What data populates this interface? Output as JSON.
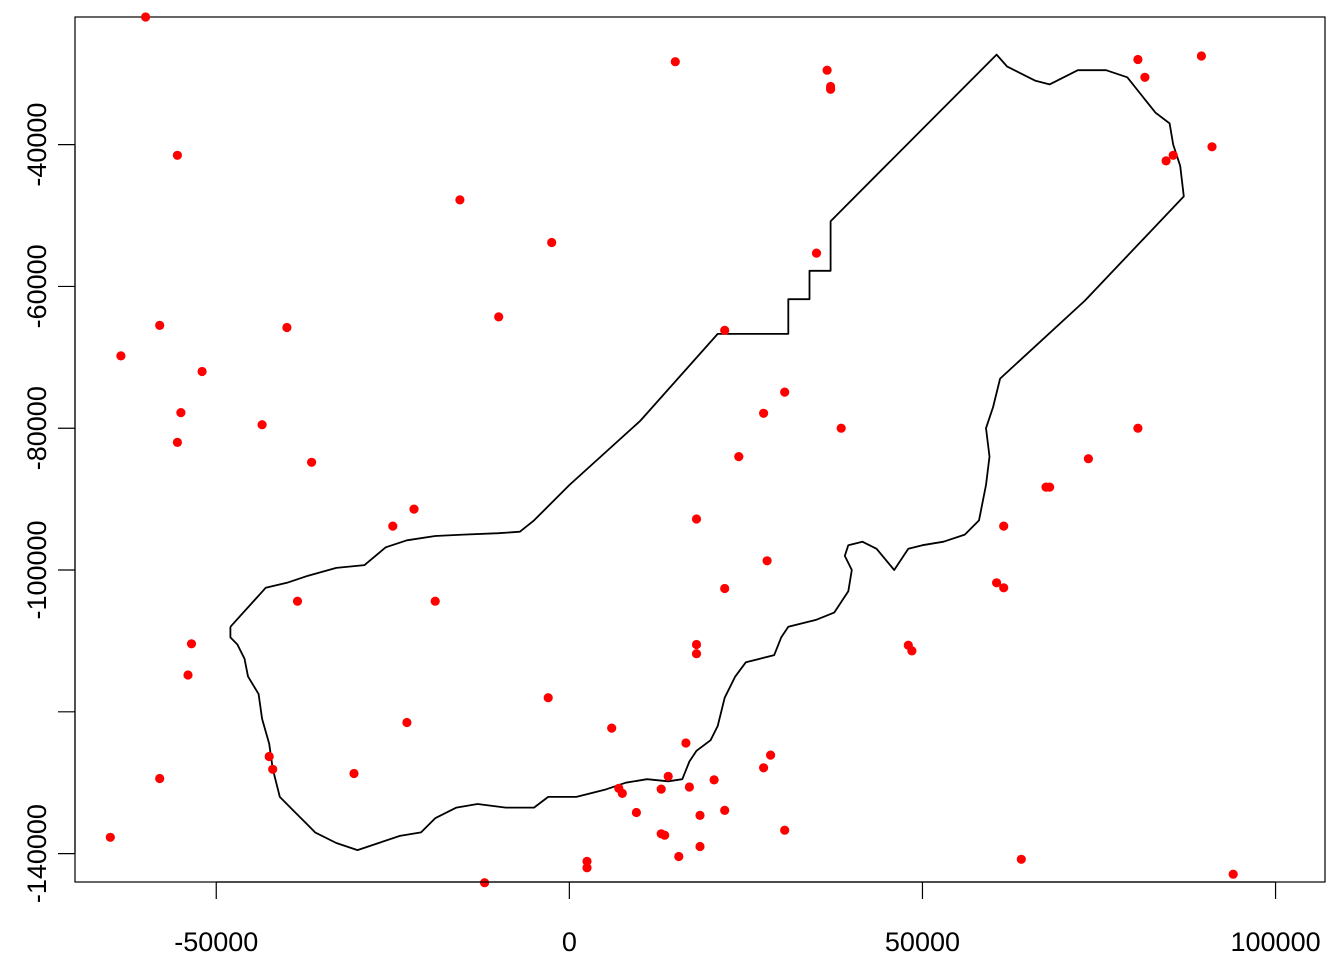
{
  "chart_data": {
    "type": "scatter",
    "title": "",
    "xlabel": "",
    "ylabel": "",
    "xlim": [
      -70000,
      107000
    ],
    "ylim": [
      -144000,
      -22000
    ],
    "x_ticks": [
      -50000,
      0,
      50000,
      100000
    ],
    "x_tick_labels": [
      "-50000",
      "0",
      "50000",
      "100000"
    ],
    "y_ticks": [
      -40000,
      -60000,
      -80000,
      -100000,
      -140000
    ],
    "y_tick_labels": [
      "-40000",
      "-60000",
      "-80000",
      "-100000",
      "-140000"
    ],
    "y_minor_ticks": [
      -120000
    ],
    "grid": false,
    "legend": "none",
    "point_color": "#ff0000",
    "boundary_color": "#000000",
    "boundary": [
      [
        -48000,
        -108000
      ],
      [
        -43000,
        -102500
      ],
      [
        -40000,
        -101800
      ],
      [
        -37000,
        -100800
      ],
      [
        -33000,
        -99700
      ],
      [
        -29000,
        -99300
      ],
      [
        -26000,
        -96800
      ],
      [
        -23000,
        -95800
      ],
      [
        -19000,
        -95200
      ],
      [
        -15000,
        -95000
      ],
      [
        -10000,
        -94800
      ],
      [
        -7000,
        -94600
      ],
      [
        -5000,
        -93000
      ],
      [
        0,
        -88000
      ],
      [
        10000,
        -79000
      ],
      [
        21000,
        -66700
      ],
      [
        31000,
        -66700
      ],
      [
        31000,
        -61800
      ],
      [
        34000,
        -61800
      ],
      [
        34000,
        -57800
      ],
      [
        37000,
        -57800
      ],
      [
        37000,
        -50800
      ],
      [
        60500,
        -27300
      ],
      [
        62000,
        -29000
      ],
      [
        64000,
        -30000
      ],
      [
        66000,
        -31000
      ],
      [
        68000,
        -31500
      ],
      [
        70000,
        -30500
      ],
      [
        72000,
        -29500
      ],
      [
        76000,
        -29500
      ],
      [
        79000,
        -30500
      ],
      [
        81000,
        -33000
      ],
      [
        83000,
        -35500
      ],
      [
        85000,
        -37000
      ],
      [
        85500,
        -40000
      ],
      [
        86500,
        -43000
      ],
      [
        87000,
        -47300
      ],
      [
        73000,
        -62000
      ],
      [
        61000,
        -73000
      ],
      [
        60000,
        -77000
      ],
      [
        59000,
        -80000
      ],
      [
        59500,
        -84000
      ],
      [
        59000,
        -88000
      ],
      [
        58000,
        -93000
      ],
      [
        56000,
        -95000
      ],
      [
        53000,
        -96000
      ],
      [
        50000,
        -96500
      ],
      [
        48000,
        -97000
      ],
      [
        46000,
        -100000
      ],
      [
        43500,
        -97000
      ],
      [
        41500,
        -96000
      ],
      [
        39500,
        -96500
      ],
      [
        39000,
        -98000
      ],
      [
        40000,
        -100000
      ],
      [
        39500,
        -103000
      ],
      [
        37500,
        -106000
      ],
      [
        35000,
        -107000
      ],
      [
        33000,
        -107500
      ],
      [
        31000,
        -108000
      ],
      [
        30000,
        -109500
      ],
      [
        29000,
        -112000
      ],
      [
        27000,
        -112500
      ],
      [
        25000,
        -113000
      ],
      [
        23500,
        -115000
      ],
      [
        22000,
        -118000
      ],
      [
        21000,
        -122000
      ],
      [
        20000,
        -124000
      ],
      [
        18000,
        -125500
      ],
      [
        17000,
        -127000
      ],
      [
        16000,
        -129500
      ],
      [
        14000,
        -129800
      ],
      [
        11000,
        -129500
      ],
      [
        8000,
        -130000
      ],
      [
        5000,
        -131000
      ],
      [
        1000,
        -132000
      ],
      [
        -3000,
        -132000
      ],
      [
        -5000,
        -133500
      ],
      [
        -9000,
        -133500
      ],
      [
        -13000,
        -133000
      ],
      [
        -16000,
        -133500
      ],
      [
        -19000,
        -135000
      ],
      [
        -21000,
        -137000
      ],
      [
        -24000,
        -137500
      ],
      [
        -27000,
        -138500
      ],
      [
        -30000,
        -139500
      ],
      [
        -33000,
        -138500
      ],
      [
        -36000,
        -137000
      ],
      [
        -37000,
        -136000
      ],
      [
        -39000,
        -134000
      ],
      [
        -41000,
        -132000
      ],
      [
        -42000,
        -128000
      ],
      [
        -42500,
        -124500
      ],
      [
        -43500,
        -121000
      ],
      [
        -44000,
        -117500
      ],
      [
        -45500,
        -115000
      ],
      [
        -46000,
        -112500
      ],
      [
        -47000,
        -110500
      ],
      [
        -48000,
        -109500
      ],
      [
        -48000,
        -108000
      ]
    ],
    "points": [
      [
        -60000,
        -22000
      ],
      [
        15000,
        -28300
      ],
      [
        36500,
        -29500
      ],
      [
        37000,
        -31800
      ],
      [
        37000,
        -32200
      ],
      [
        80500,
        -28000
      ],
      [
        81500,
        -30500
      ],
      [
        89500,
        -27500
      ],
      [
        -55500,
        -41500
      ],
      [
        -15500,
        -47800
      ],
      [
        84500,
        -42300
      ],
      [
        85500,
        -41500
      ],
      [
        91000,
        -40300
      ],
      [
        -2500,
        -53800
      ],
      [
        35000,
        -55300
      ],
      [
        -58000,
        -65500
      ],
      [
        -40000,
        -65800
      ],
      [
        -10000,
        -64300
      ],
      [
        22000,
        -66200
      ],
      [
        -63500,
        -69800
      ],
      [
        -52000,
        -72000
      ],
      [
        -55000,
        -77800
      ],
      [
        -43500,
        -79500
      ],
      [
        -55500,
        -82000
      ],
      [
        -36500,
        -84800
      ],
      [
        30500,
        -74900
      ],
      [
        27500,
        -77900
      ],
      [
        38500,
        -80000
      ],
      [
        80500,
        -80000
      ],
      [
        24000,
        -84000
      ],
      [
        73500,
        -84300
      ],
      [
        67500,
        -88300
      ],
      [
        68000,
        -88300
      ],
      [
        -22000,
        -91400
      ],
      [
        -25000,
        -93800
      ],
      [
        18000,
        -92800
      ],
      [
        61500,
        -93800
      ],
      [
        28000,
        -98700
      ],
      [
        60500,
        -101800
      ],
      [
        61500,
        -102500
      ],
      [
        22000,
        -102600
      ],
      [
        -38500,
        -104400
      ],
      [
        -19000,
        -104400
      ],
      [
        -53500,
        -110400
      ],
      [
        18000,
        -110500
      ],
      [
        18000,
        -111800
      ],
      [
        48000,
        -110600
      ],
      [
        48500,
        -111400
      ],
      [
        -54000,
        -114800
      ],
      [
        -3000,
        -118000
      ],
      [
        -23000,
        -121500
      ],
      [
        6000,
        -122300
      ],
      [
        16500,
        -124400
      ],
      [
        -42500,
        -126300
      ],
      [
        28500,
        -126100
      ],
      [
        27500,
        -127900
      ],
      [
        -42000,
        -128100
      ],
      [
        -30500,
        -128700
      ],
      [
        -58000,
        -129400
      ],
      [
        14000,
        -129100
      ],
      [
        20500,
        -129600
      ],
      [
        7000,
        -130800
      ],
      [
        17000,
        -130600
      ],
      [
        7500,
        -131500
      ],
      [
        13000,
        -130900
      ],
      [
        22000,
        -133900
      ],
      [
        9500,
        -134200
      ],
      [
        18500,
        -134600
      ],
      [
        13000,
        -137200
      ],
      [
        13500,
        -137400
      ],
      [
        30500,
        -136700
      ],
      [
        -65000,
        -137700
      ],
      [
        18500,
        -139000
      ],
      [
        15500,
        -140400
      ],
      [
        2500,
        -141100
      ],
      [
        64000,
        -140800
      ],
      [
        2500,
        -142000
      ],
      [
        94000,
        -142900
      ],
      [
        -12000,
        -144100
      ]
    ]
  }
}
